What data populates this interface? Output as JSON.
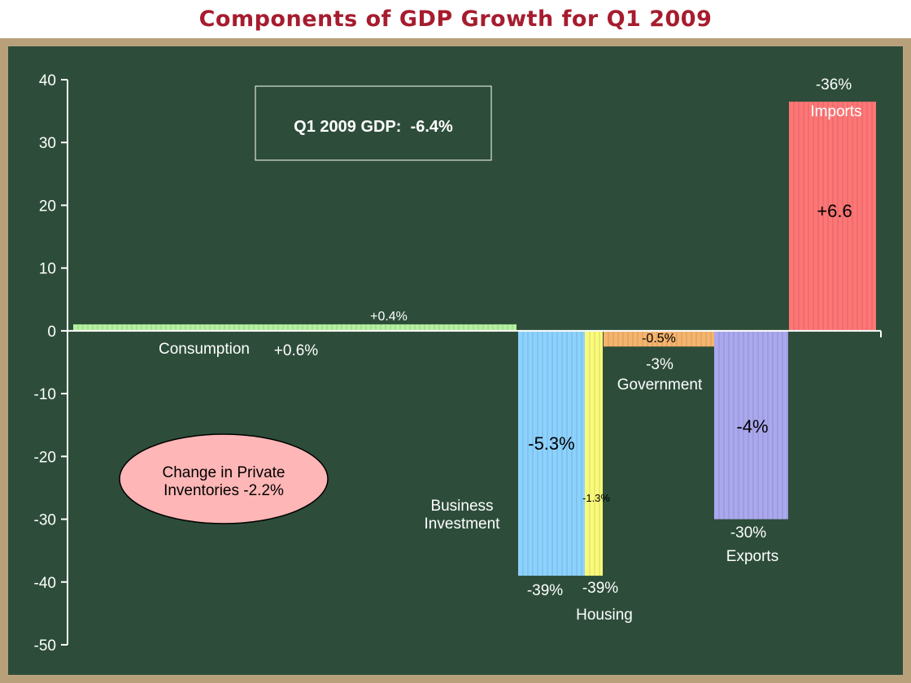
{
  "title": "Components of GDP Growth for Q1 2009",
  "gdp_box": "Q1 2009 GDP:  -6.4%",
  "inventories_callout": {
    "line1": "Change in Private",
    "line2": "Inventories -2.2%"
  },
  "colors": {
    "title": "#a61c2e",
    "background": "#2d4d3a",
    "frame": "#b8a17a"
  },
  "chart_data": {
    "type": "bar",
    "ylim": [
      -50,
      40
    ],
    "yticks": [
      40,
      30,
      20,
      10,
      0,
      -10,
      -20,
      -30,
      -40,
      -50
    ],
    "grid": false,
    "bars": [
      {
        "name": "Consumption",
        "category_label": "Consumption",
        "growth_rate": 0.6,
        "growth_label": "+0.6%",
        "contribution_label": "+0.4%",
        "value": 0.6,
        "color": "#b4f0a0"
      },
      {
        "name": "Business Investment",
        "category_label": "Business Investment",
        "growth_rate": -39,
        "growth_label": "-39%",
        "contribution_label": "-5.3%",
        "value": -39,
        "color": "#8cd2ff"
      },
      {
        "name": "Housing",
        "category_label": "Housing",
        "growth_rate": -39,
        "growth_label": "-39%",
        "contribution_label": "-1.3%",
        "value": -39,
        "color": "#fafa7a"
      },
      {
        "name": "Government",
        "category_label": "Government",
        "growth_rate": -3,
        "growth_label": "-3%",
        "contribution_label": "-0.5%",
        "value": -3,
        "color": "#f5b46e"
      },
      {
        "name": "Exports",
        "category_label": "Exports",
        "growth_rate": -30,
        "growth_label": "-30%",
        "contribution_label": "-4%",
        "value": -30,
        "color": "#aaa8ee"
      },
      {
        "name": "Imports",
        "category_label": "Imports",
        "growth_rate": -36,
        "growth_label": "-36%",
        "contribution_label": "+6.6",
        "value": 36.5,
        "color": "#ff7676"
      }
    ]
  }
}
